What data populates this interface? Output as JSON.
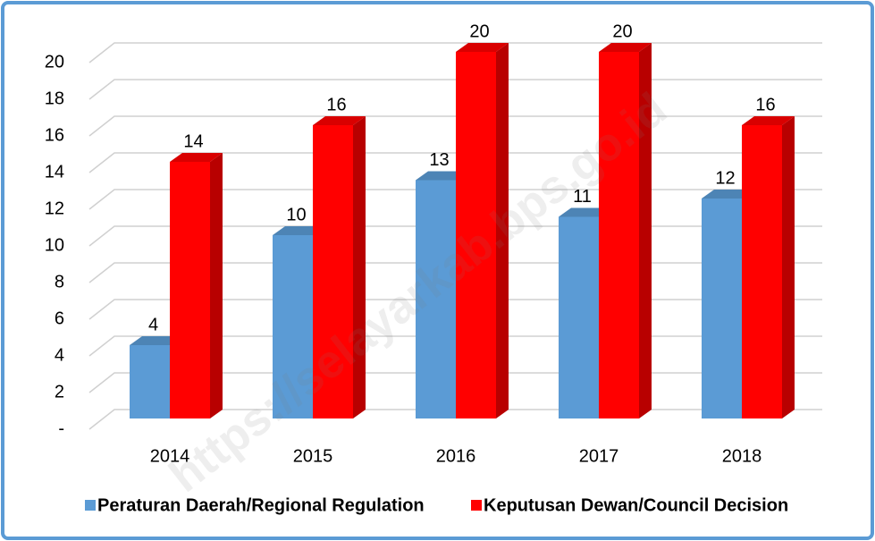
{
  "chart_data": {
    "type": "bar3d",
    "categories": [
      "2014",
      "2015",
      "2016",
      "2017",
      "2018"
    ],
    "series": [
      {
        "name": "Peraturan Daerah/Regional Regulation",
        "color": "#5b9bd5",
        "values": [
          4,
          10,
          13,
          11,
          12
        ]
      },
      {
        "name": "Keputusan Dewan/Council Decision",
        "color": "#ff0000",
        "values": [
          14,
          16,
          20,
          20,
          16
        ]
      }
    ],
    "ylim": [
      0,
      20
    ],
    "yticks": [
      {
        "value": 0,
        "label": "-"
      },
      2,
      4,
      6,
      8,
      10,
      12,
      14,
      16,
      18,
      20
    ],
    "grid": true,
    "legend": "bottom",
    "watermark": "https://selayarkab.bps.go.id"
  }
}
